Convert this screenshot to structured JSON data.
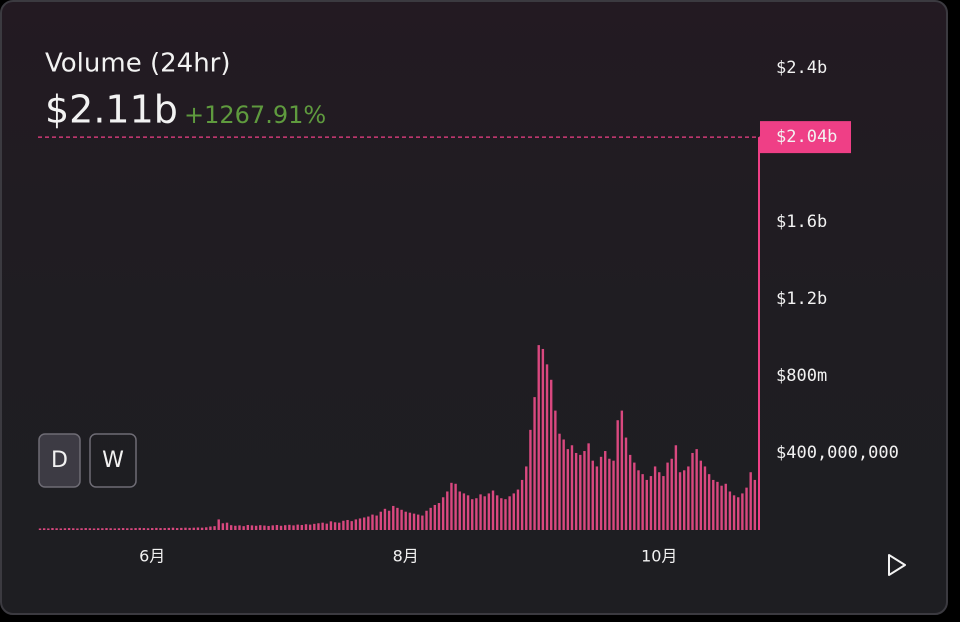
{
  "chart_data": {
    "type": "bar",
    "title": "Volume (24hr)",
    "subtitle": "$2.11b",
    "change": "+1267.91%",
    "buttons": [
      "D",
      "W"
    ],
    "color": "#d9487f",
    "highlight_color": "#ef3f86",
    "categories": [
      null,
      null,
      null,
      null,
      null,
      null,
      null,
      null,
      null,
      null,
      null,
      null,
      null,
      null,
      null,
      null,
      null,
      null,
      null,
      null,
      null,
      null,
      null,
      null,
      null,
      null,
      null,
      "6月",
      null,
      null,
      null,
      null,
      null,
      null,
      null,
      null,
      null,
      null,
      null,
      null,
      null,
      null,
      null,
      null,
      null,
      null,
      null,
      null,
      null,
      null,
      null,
      null,
      null,
      null,
      null,
      null,
      null,
      null,
      null,
      null,
      null,
      null,
      null,
      null,
      null,
      null,
      null,
      null,
      null,
      null,
      null,
      null,
      null,
      null,
      null,
      null,
      null,
      null,
      null,
      null,
      null,
      null,
      null,
      null,
      null,
      null,
      null,
      null,
      "8月",
      null,
      null,
      null,
      null,
      null,
      null,
      null,
      null,
      null,
      null,
      null,
      null,
      null,
      null,
      null,
      null,
      null,
      null,
      null,
      null,
      null,
      null,
      null,
      null,
      null,
      null,
      null,
      null,
      null,
      null,
      null,
      null,
      null,
      null,
      null,
      null,
      null,
      null,
      null,
      null,
      null,
      null,
      null,
      null,
      null,
      null,
      null,
      null,
      null,
      null,
      null,
      null,
      null,
      null,
      null,
      null,
      null,
      null,
      null,
      null,
      "10月",
      null,
      null,
      null,
      null,
      null,
      null,
      null,
      null,
      null,
      null,
      null,
      null,
      null,
      null,
      null,
      null,
      null,
      null,
      null,
      null,
      null,
      null,
      null,
      null
    ],
    "values": [
      8000000,
      9000000,
      8000000,
      10000000,
      9000000,
      8000000,
      9000000,
      10000000,
      9000000,
      8000000,
      9000000,
      10000000,
      9000000,
      8000000,
      9000000,
      9000000,
      10000000,
      9000000,
      8000000,
      9000000,
      10000000,
      9000000,
      9000000,
      10000000,
      11000000,
      10000000,
      9000000,
      10000000,
      11000000,
      10000000,
      10000000,
      11000000,
      12000000,
      10000000,
      11000000,
      12000000,
      11000000,
      12000000,
      13000000,
      12000000,
      14000000,
      18000000,
      20000000,
      55000000,
      35000000,
      38000000,
      25000000,
      22000000,
      24000000,
      20000000,
      26000000,
      24000000,
      22000000,
      25000000,
      23000000,
      21000000,
      24000000,
      26000000,
      22000000,
      25000000,
      27000000,
      24000000,
      28000000,
      26000000,
      30000000,
      28000000,
      32000000,
      35000000,
      38000000,
      33000000,
      45000000,
      40000000,
      38000000,
      48000000,
      52000000,
      46000000,
      55000000,
      60000000,
      65000000,
      70000000,
      80000000,
      75000000,
      95000000,
      110000000,
      100000000,
      125000000,
      115000000,
      105000000,
      95000000,
      90000000,
      85000000,
      80000000,
      75000000,
      100000000,
      115000000,
      130000000,
      140000000,
      170000000,
      200000000,
      245000000,
      240000000,
      200000000,
      190000000,
      180000000,
      160000000,
      165000000,
      185000000,
      175000000,
      190000000,
      205000000,
      180000000,
      165000000,
      160000000,
      175000000,
      190000000,
      210000000,
      260000000,
      330000000,
      520000000,
      690000000,
      960000000,
      940000000,
      860000000,
      780000000,
      620000000,
      500000000,
      470000000,
      420000000,
      440000000,
      400000000,
      390000000,
      410000000,
      450000000,
      360000000,
      330000000,
      380000000,
      410000000,
      370000000,
      360000000,
      570000000,
      620000000,
      480000000,
      390000000,
      350000000,
      310000000,
      290000000,
      260000000,
      280000000,
      330000000,
      300000000,
      280000000,
      350000000,
      370000000,
      440000000,
      300000000,
      310000000,
      330000000,
      400000000,
      420000000,
      360000000,
      330000000,
      290000000,
      260000000,
      250000000,
      230000000,
      240000000,
      200000000,
      180000000,
      170000000,
      190000000,
      220000000,
      300000000,
      260000000,
      2040000000
    ],
    "current_label": {
      "value": 2040000000,
      "label": "$2.04b"
    },
    "ylim": [
      0,
      2700000000
    ],
    "yticks": [
      {
        "value": 400000000,
        "label": "$400,000,000"
      },
      {
        "value": 800000000,
        "label": "$800m"
      },
      {
        "value": 1200000000,
        "label": "$1.2b"
      },
      {
        "value": 1600000000,
        "label": "$1.6b"
      },
      {
        "value": 2400000000,
        "label": "$2.4b"
      }
    ],
    "grid": false
  }
}
